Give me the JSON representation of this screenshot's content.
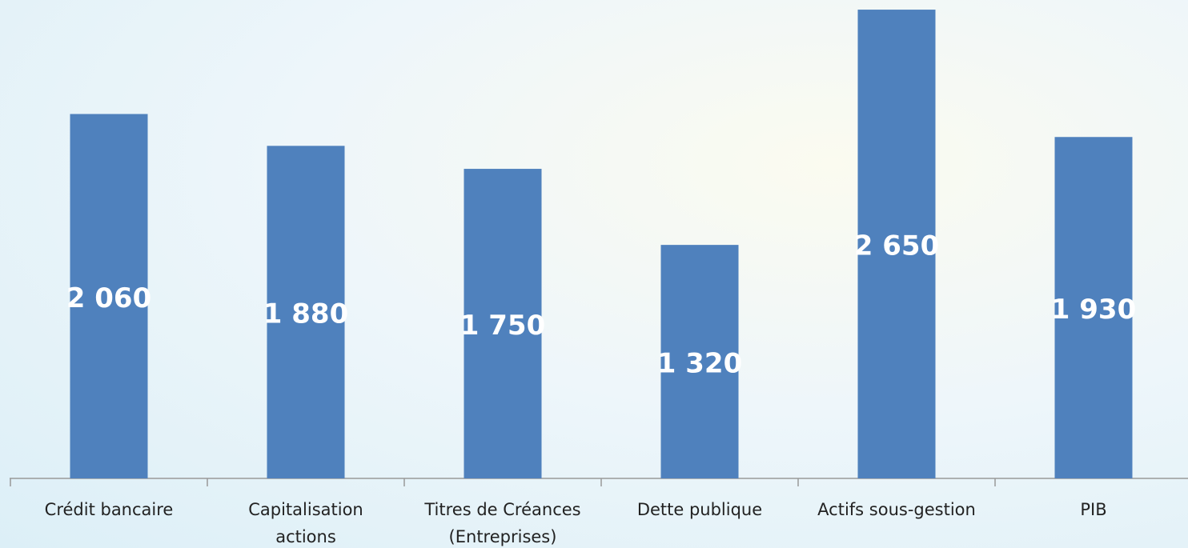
{
  "chart_data": {
    "type": "bar",
    "categories": [
      "Crédit bancaire",
      "Capitalisation actions",
      "Titres de Créances (Entreprises)",
      "Dette publique",
      "Actifs sous-gestion",
      "PIB"
    ],
    "values": [
      2060,
      1880,
      1750,
      1320,
      2650,
      1930
    ],
    "value_labels": [
      "2 060",
      "1 880",
      "1 750",
      "1 320",
      "2 650",
      "1 930"
    ],
    "color": "#4f81bd",
    "ylim": [
      0,
      2700
    ]
  }
}
